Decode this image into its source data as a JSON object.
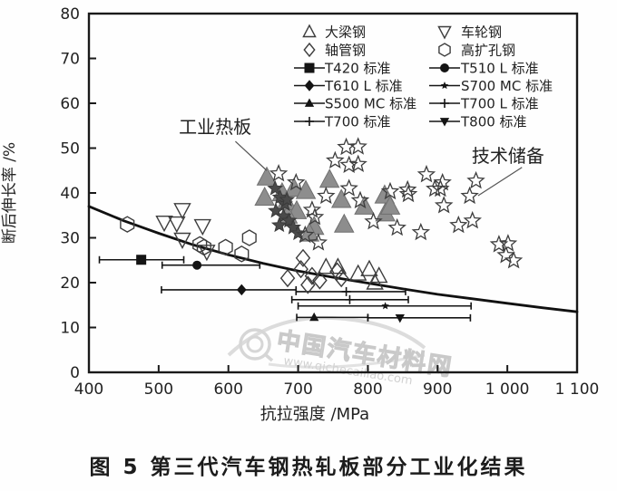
{
  "figure": {
    "caption": "图 5  第三代汽车钢热轧板部分工业化结果",
    "watermark": {
      "name": "中国汽车材料网",
      "url": "www.qichecailiao.com"
    }
  },
  "colors": {
    "axis": "#1a1a1a",
    "text": "#222222",
    "gray_triangle_fill": "#8d8d8d",
    "gray_triangle_stroke": "#6f6f6f",
    "dark_star_fill": "#4a4a4a",
    "open_marker_stroke": "#3d3d3d",
    "solid_marker": "#141414",
    "curve": "#111111",
    "watermark": "#d6d6d6"
  },
  "chart_data": {
    "type": "scatter",
    "title": "",
    "xlabel": "抗拉强度 /MPa",
    "ylabel": "断后伸长率 /%",
    "xlim": [
      400,
      1100
    ],
    "ylim": [
      0,
      80
    ],
    "grid": false,
    "x_ticks": [
      400,
      500,
      600,
      700,
      800,
      900,
      1000,
      1100
    ],
    "x_tick_labels": [
      "400",
      "500",
      "600",
      "700",
      "800",
      "900",
      "1 000",
      "1 100"
    ],
    "y_ticks": [
      0,
      10,
      20,
      30,
      40,
      50,
      60,
      70,
      80
    ],
    "y_tick_labels": [
      "0",
      "10",
      "20",
      "30",
      "40",
      "50",
      "60",
      "70",
      "80"
    ],
    "legend_position": "top-inside-two-columns",
    "legend": {
      "row_ys": [
        35,
        55,
        75,
        94.5,
        114,
        134
      ],
      "columns": [
        {
          "x_marker": 341,
          "x_text": 358,
          "items": [
            {
              "label": "大梁钢",
              "marker": "tri-up-open",
              "line": false
            },
            {
              "label": "轴管钢",
              "marker": "diamond-open",
              "line": false
            },
            {
              "label": "T420 标准",
              "marker": "square-fill",
              "line": true
            },
            {
              "label": "T610 L 标准",
              "marker": "diamond-fill",
              "line": true
            },
            {
              "label": "S500 MC 标准",
              "marker": "tri-small-fill",
              "line": true
            },
            {
              "label": "T700 标准",
              "marker": "plus",
              "line": true
            }
          ]
        },
        {
          "x_marker": 490,
          "x_text": 508,
          "items": [
            {
              "label": "车轮钢",
              "marker": "tri-down-open",
              "line": false
            },
            {
              "label": "高扩孔钢",
              "marker": "hex-open",
              "line": false
            },
            {
              "label": "T510 L 标准",
              "marker": "circle-fill",
              "line": true
            },
            {
              "label": "S700 MC 标准",
              "marker": "star-small-fill",
              "line": true
            },
            {
              "label": "T700 L 标准",
              "marker": "plus",
              "line": true
            },
            {
              "label": "T800 标准",
              "marker": "tri-down-fill",
              "line": true
            }
          ]
        }
      ]
    },
    "annotations": [
      {
        "text": "工业热板",
        "x": 581,
        "y": 54.5,
        "arrow_from": [
          610,
          51.5
        ],
        "arrow_to": [
          655,
          45
        ]
      },
      {
        "text": "技术储备",
        "x": 1001,
        "y": 48.1,
        "arrow_from": [
          1021,
          45.7
        ],
        "arrow_to": [
          958,
          39.4
        ]
      }
    ],
    "series": [
      {
        "id": "girder",
        "legend_label": "大梁钢",
        "marker": "tri-up-open",
        "size": 9,
        "points": [
          [
            740,
            23.5
          ],
          [
            757,
            23.5
          ],
          [
            786,
            22
          ],
          [
            802,
            23
          ],
          [
            816,
            21.5
          ],
          [
            810,
            20
          ]
        ]
      },
      {
        "id": "wheel",
        "legend_label": "车轮钢",
        "marker": "tri-down-open",
        "size": 9,
        "points": [
          [
            534,
            36.2
          ],
          [
            508,
            33.4
          ],
          [
            526,
            33.2
          ],
          [
            563,
            32.6
          ],
          [
            534,
            29.6
          ],
          [
            569,
            26.9
          ]
        ]
      },
      {
        "id": "axle_tube",
        "legend_label": "轴管钢",
        "marker": "diamond-open",
        "size": 9,
        "points": [
          [
            685,
            21
          ],
          [
            704,
            23
          ],
          [
            714,
            19.5
          ],
          [
            720,
            21.5
          ],
          [
            731,
            20.5
          ],
          [
            756,
            22.5
          ],
          [
            762,
            21
          ],
          [
            707,
            25.5
          ]
        ]
      },
      {
        "id": "hole_expansion",
        "legend_label": "高扩孔钢",
        "marker": "hex-open",
        "size": 8.5,
        "points": [
          [
            455,
            33
          ],
          [
            559,
            28.5
          ],
          [
            565,
            27.9
          ],
          [
            596,
            27.9
          ],
          [
            630,
            30
          ],
          [
            619,
            26.4
          ]
        ]
      },
      {
        "id": "industrial_gray_triangles",
        "annotation": "工业热板",
        "marker": "tri-up-fill",
        "size": 11,
        "points": [
          [
            655,
            43.5
          ],
          [
            652,
            39
          ],
          [
            677,
            40
          ],
          [
            683,
            38
          ],
          [
            694,
            41
          ],
          [
            698,
            36
          ],
          [
            711,
            40.5
          ],
          [
            685,
            35
          ],
          [
            723,
            32.5
          ],
          [
            745,
            43
          ],
          [
            762,
            38.5
          ],
          [
            795,
            37
          ],
          [
            824,
            39.5
          ],
          [
            825,
            35.5
          ],
          [
            766,
            33
          ],
          [
            716,
            31
          ],
          [
            832,
            37
          ]
        ]
      },
      {
        "id": "industrial_dark_stars",
        "marker": "star-fill",
        "size": 8,
        "points": [
          [
            667,
            41
          ],
          [
            674,
            39
          ],
          [
            681,
            37.5
          ],
          [
            668,
            36
          ],
          [
            679,
            34.8
          ],
          [
            687,
            33.8
          ],
          [
            673,
            32.8
          ],
          [
            693,
            32.3
          ],
          [
            700,
            31
          ],
          [
            684,
            38.5
          ]
        ]
      },
      {
        "id": "open_stars",
        "annotation": "技术储备",
        "marker": "star-open",
        "size": 9,
        "points": [
          [
            672,
            44.3
          ],
          [
            697,
            42.3
          ],
          [
            753,
            47.2
          ],
          [
            773,
            46.2
          ],
          [
            786,
            46.4
          ],
          [
            769,
            50.2
          ],
          [
            786,
            50.3
          ],
          [
            740,
            39.3
          ],
          [
            773,
            41
          ],
          [
            789,
            38.3
          ],
          [
            832,
            40.3
          ],
          [
            857,
            40.7
          ],
          [
            808,
            33.6
          ],
          [
            842,
            32.2
          ],
          [
            720,
            36.2
          ],
          [
            724,
            34.6
          ],
          [
            710,
            30.6
          ],
          [
            729,
            28.9
          ],
          [
            884,
            44.1
          ],
          [
            907,
            42.3
          ],
          [
            858,
            39.7
          ],
          [
            896,
            40.9
          ],
          [
            904,
            40.9
          ],
          [
            955,
            42.7
          ],
          [
            946,
            39.3
          ],
          [
            909,
            37.2
          ],
          [
            876,
            31.2
          ],
          [
            930,
            32.8
          ],
          [
            950,
            33.8
          ],
          [
            988,
            28.5
          ],
          [
            1001,
            28.7
          ],
          [
            998,
            26.1
          ],
          [
            1009,
            24.9
          ]
        ]
      }
    ],
    "error_bar_series": [
      {
        "id": "t420",
        "label": "T420 标准",
        "marker": "square-fill",
        "x": 475,
        "y": 25.1,
        "x_range": [
          415,
          536
        ]
      },
      {
        "id": "t510l",
        "label": "T510 L 标准",
        "marker": "circle-fill",
        "x": 555,
        "y": 23.9,
        "x_range": [
          505,
          645
        ]
      },
      {
        "id": "t610l",
        "label": "T610 L 标准",
        "marker": "diamond-fill",
        "x": 619,
        "y": 18.4,
        "x_range": [
          504,
          697
        ]
      },
      {
        "id": "t700l",
        "label": "T700 L 标准",
        "marker": "plus",
        "x": 769,
        "y": 18.0,
        "x_range": [
          697,
          854
        ]
      },
      {
        "id": "t700",
        "label": "T700 标准",
        "marker": "plus",
        "x": 774,
        "y": 16.2,
        "x_range": [
          691,
          858
        ]
      },
      {
        "id": "s700mc",
        "label": "S700 MC 标准",
        "marker": "star-small-fill",
        "x": 825,
        "y": 14.8,
        "x_range": [
          700,
          948
        ]
      },
      {
        "id": "s500mc",
        "label": "S500 MC 标准",
        "marker": "tri-small-fill",
        "x": 723,
        "y": 12.25,
        "x_range": [
          698,
          800
        ]
      },
      {
        "id": "t800",
        "label": "T800 标准",
        "marker": "tri-down-fill",
        "x": 846,
        "y": 12.15,
        "x_range": [
          800,
          947
        ]
      }
    ],
    "curve": {
      "points": [
        [
          400,
          37
        ],
        [
          450,
          33.8
        ],
        [
          500,
          31
        ],
        [
          550,
          28.4
        ],
        [
          600,
          26.2
        ],
        [
          650,
          24.3
        ],
        [
          700,
          22.6
        ],
        [
          750,
          21.2
        ],
        [
          800,
          19.9
        ],
        [
          850,
          18.6
        ],
        [
          900,
          17.4
        ],
        [
          950,
          16.4
        ],
        [
          1000,
          15.4
        ],
        [
          1050,
          14.4
        ],
        [
          1100,
          13.5
        ]
      ]
    }
  }
}
